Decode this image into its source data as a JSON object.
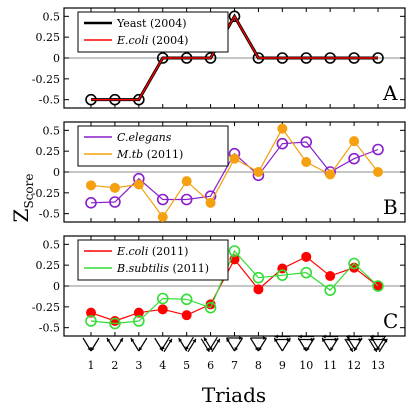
{
  "chart_data": [
    {
      "type": "line",
      "panel_label": "A",
      "x": [
        1,
        2,
        3,
        4,
        5,
        6,
        7,
        8,
        9,
        10,
        11,
        12,
        13
      ],
      "ylim": [
        -0.6,
        0.6
      ],
      "yticks": [
        "0.5",
        "0.25",
        "0",
        "-0.25",
        "-0.5"
      ],
      "ytick_values": [
        0.5,
        0.25,
        0,
        -0.25,
        -0.5
      ],
      "legend_position": "top-left",
      "series": [
        {
          "name": "Yeast",
          "suffix": " (2004)",
          "italic": false,
          "color": "#000000",
          "marker": "open-circle",
          "width": 3,
          "values": [
            -0.5,
            -0.5,
            -0.5,
            0,
            0,
            0,
            0.5,
            0,
            0,
            0,
            0,
            0,
            0
          ]
        },
        {
          "name": "E.coli",
          "suffix": " (2004)",
          "italic": true,
          "color": "#ff0000",
          "marker": "none",
          "width": 1.2,
          "values": [
            -0.5,
            -0.5,
            -0.5,
            0,
            0,
            0,
            0.5,
            0,
            0,
            0,
            0,
            0,
            0
          ]
        }
      ]
    },
    {
      "type": "line",
      "panel_label": "B",
      "x": [
        1,
        2,
        3,
        4,
        5,
        6,
        7,
        8,
        9,
        10,
        11,
        12,
        13
      ],
      "ylim": [
        -0.6,
        0.6
      ],
      "yticks": [
        "0.5",
        "0.25",
        "0",
        "-0.25",
        "-0.5"
      ],
      "ytick_values": [
        0.5,
        0.25,
        0,
        -0.25,
        -0.5
      ],
      "legend_position": "top-left",
      "series": [
        {
          "name": "C.elegans",
          "suffix": "",
          "italic": true,
          "color": "#8a1fcc",
          "marker": "open-circle",
          "width": 1.2,
          "values": [
            -0.37,
            -0.36,
            -0.08,
            -0.33,
            -0.33,
            -0.29,
            0.22,
            -0.04,
            0.34,
            0.36,
            0.0,
            0.16,
            0.27
          ]
        },
        {
          "name": "M.tb",
          "suffix": " (2011)",
          "italic": true,
          "color": "#f5a010",
          "marker": "filled-circle",
          "width": 1.2,
          "values": [
            -0.16,
            -0.19,
            -0.15,
            -0.54,
            -0.11,
            -0.37,
            0.16,
            0.0,
            0.52,
            0.12,
            -0.03,
            0.37,
            0.0
          ]
        }
      ]
    },
    {
      "type": "line",
      "panel_label": "C",
      "x": [
        1,
        2,
        3,
        4,
        5,
        6,
        7,
        8,
        9,
        10,
        11,
        12,
        13
      ],
      "ylim": [
        -0.6,
        0.6
      ],
      "yticks": [
        "0.5",
        "0.25",
        "0",
        "-0.25",
        "-0.5"
      ],
      "ytick_values": [
        0.5,
        0.25,
        0,
        -0.25,
        -0.5
      ],
      "legend_position": "top-left",
      "series": [
        {
          "name": "E.coli",
          "suffix": " (2011)",
          "italic": true,
          "color": "#ff0000",
          "marker": "filled-circle",
          "width": 1.2,
          "values": [
            -0.32,
            -0.42,
            -0.32,
            -0.28,
            -0.35,
            -0.22,
            0.32,
            -0.04,
            0.21,
            0.35,
            0.12,
            0.22,
            0.0
          ]
        },
        {
          "name": "B.subtilis",
          "suffix": " (2011)",
          "italic": true,
          "color": "#33dd33",
          "marker": "open-circle",
          "width": 1.2,
          "values": [
            -0.42,
            -0.45,
            -0.42,
            -0.15,
            -0.16,
            -0.26,
            0.42,
            0.1,
            0.13,
            0.16,
            -0.05,
            0.27,
            0.0
          ]
        }
      ]
    }
  ],
  "ylabel_main": "Z",
  "ylabel_sub": "Score",
  "xlabel": "Triads",
  "xtick_labels": [
    "1",
    "2",
    "3",
    "4",
    "5",
    "6",
    "7",
    "8",
    "9",
    "10",
    "11",
    "12",
    "13"
  ],
  "triad_icon_names": [
    "triad-1-icon",
    "triad-2-icon",
    "triad-3-icon",
    "triad-4-icon",
    "triad-5-icon",
    "triad-6-icon",
    "triad-7-icon",
    "triad-8-icon",
    "triad-9-icon",
    "triad-10-icon",
    "triad-11-icon",
    "triad-12-icon",
    "triad-13-icon"
  ]
}
